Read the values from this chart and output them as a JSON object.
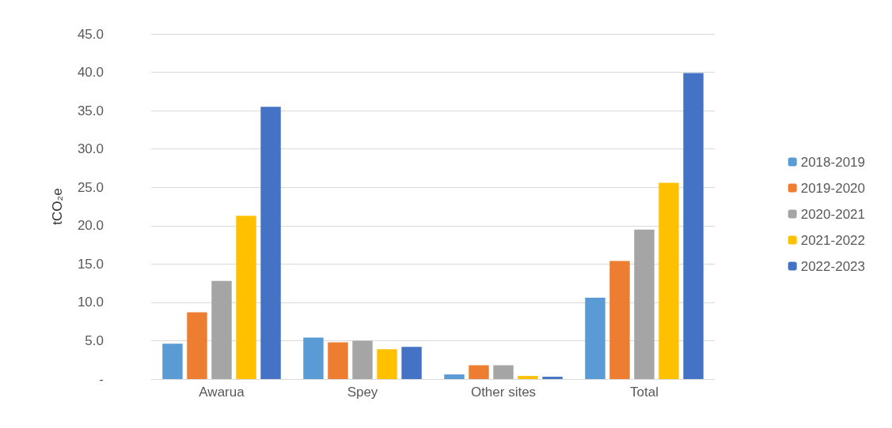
{
  "chart_data": {
    "type": "bar",
    "ylabel": "tCO₂e",
    "categories": [
      "Awarua",
      "Spey",
      "Other sites",
      "Total"
    ],
    "series": [
      {
        "name": "2018-2019",
        "color": "#5b9bd5",
        "values": [
          4.6,
          5.4,
          0.6,
          10.6
        ]
      },
      {
        "name": "2019-2020",
        "color": "#ed7d31",
        "values": [
          8.7,
          4.8,
          1.8,
          15.4
        ]
      },
      {
        "name": "2020-2021",
        "color": "#a5a5a5",
        "values": [
          12.8,
          5.0,
          1.8,
          19.5
        ]
      },
      {
        "name": "2021-2022",
        "color": "#ffc000",
        "values": [
          21.3,
          3.9,
          0.4,
          25.6
        ]
      },
      {
        "name": "2022-2023",
        "color": "#4472c4",
        "values": [
          35.5,
          4.2,
          0.3,
          39.9
        ]
      }
    ],
    "ylim": [
      0,
      45
    ],
    "yticks": [
      {
        "value": 0,
        "label": "-"
      },
      {
        "value": 5,
        "label": "5.0"
      },
      {
        "value": 10,
        "label": "10.0"
      },
      {
        "value": 15,
        "label": "15.0"
      },
      {
        "value": 20,
        "label": "20.0"
      },
      {
        "value": 25,
        "label": "25.0"
      },
      {
        "value": 30,
        "label": "30.0"
      },
      {
        "value": 35,
        "label": "35.0"
      },
      {
        "value": 40,
        "label": "40.0"
      },
      {
        "value": 45,
        "label": "45.0"
      }
    ],
    "grid": "y",
    "legend": "right"
  }
}
